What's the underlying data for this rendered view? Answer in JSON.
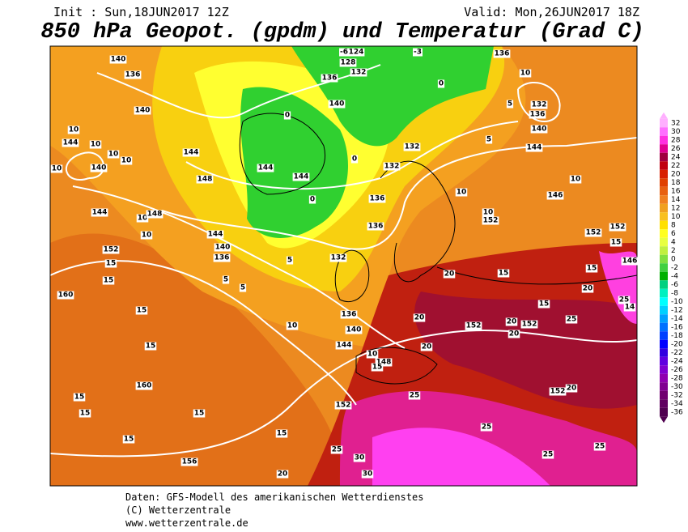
{
  "header": {
    "init": "Init : Sun,18JUN2017 12Z",
    "valid": "Valid: Mon,26JUN2017 18Z",
    "title": "850 hPa Geopot. (gpdm) und Temperatur (Grad C)"
  },
  "colorbar": {
    "labels": [
      32,
      30,
      28,
      26,
      24,
      22,
      20,
      18,
      16,
      14,
      12,
      10,
      8,
      6,
      4,
      2,
      0,
      -2,
      -4,
      -6,
      -8,
      -10,
      -12,
      -14,
      -16,
      -18,
      -20,
      -22,
      -24,
      -26,
      -28,
      -30,
      -32,
      -34,
      -36
    ],
    "colors": [
      "#ffb0ff",
      "#ff70ff",
      "#ff30e0",
      "#e00090",
      "#a00040",
      "#c00010",
      "#d82000",
      "#e04000",
      "#e86010",
      "#f08020",
      "#f0a020",
      "#f8c020",
      "#ffe000",
      "#ffff20",
      "#e8ff40",
      "#c0f040",
      "#80e040",
      "#40d040",
      "#00b000",
      "#00d080",
      "#00f0c0",
      "#00ffff",
      "#00d0ff",
      "#00a0ff",
      "#0070ff",
      "#0040ff",
      "#0000ff",
      "#3000e0",
      "#6000e0",
      "#8000d0",
      "#9000b0",
      "#800090",
      "#700070",
      "#600060",
      "#500050"
    ]
  },
  "contour_labels": [
    140,
    136,
    140,
    10,
    144,
    10,
    10,
    10,
    140,
    10,
    144,
    148,
    144,
    144,
    144,
    10,
    148,
    10,
    152,
    15,
    160,
    15,
    15,
    15,
    160,
    15,
    15,
    15,
    15,
    156,
    15,
    20,
    144,
    140,
    136,
    5,
    5,
    132,
    136,
    140,
    144,
    10,
    10,
    148,
    15,
    152,
    25,
    25,
    30,
    30,
    25,
    25,
    25,
    152,
    20,
    152,
    20,
    152,
    20,
    25,
    25,
    14,
    20,
    15,
    15,
    15,
    20,
    20,
    20,
    146,
    152,
    10,
    152,
    152,
    15,
    146,
    10,
    10,
    144,
    5,
    140,
    132,
    136,
    10,
    136,
    5,
    0,
    -6,
    124,
    128,
    132,
    -3,
    136,
    140,
    132,
    132,
    136,
    136,
    5,
    0,
    0,
    0
  ],
  "footer": [
    "Daten: GFS-Modell des amerikanischen Wetterdienstes",
    "(C) Wetterzentrale",
    "www.wetterzentrale.de"
  ]
}
